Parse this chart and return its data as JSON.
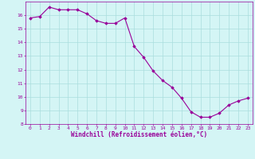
{
  "x": [
    0,
    1,
    2,
    3,
    4,
    5,
    6,
    7,
    8,
    9,
    10,
    11,
    12,
    13,
    14,
    15,
    16,
    17,
    18,
    19,
    20,
    21,
    22,
    23
  ],
  "y": [
    15.8,
    15.9,
    16.6,
    16.4,
    16.4,
    16.4,
    16.1,
    15.6,
    15.4,
    15.4,
    15.8,
    13.7,
    12.9,
    11.9,
    11.2,
    10.7,
    9.9,
    8.9,
    8.5,
    8.5,
    8.8,
    9.4,
    9.7,
    9.9
  ],
  "line_color": "#990099",
  "marker": "D",
  "markersize": 1.8,
  "linewidth": 0.8,
  "xlabel": "Windchill (Refroidissement éolien,°C)",
  "xlabel_color": "#990099",
  "xlabel_fontsize": 5.5,
  "bg_color": "#d4f5f5",
  "grid_color": "#aadddd",
  "tick_color": "#990099",
  "ylim": [
    8,
    17
  ],
  "xlim": [
    -0.5,
    23.5
  ],
  "yticks": [
    8,
    9,
    10,
    11,
    12,
    13,
    14,
    15,
    16
  ],
  "xticks": [
    0,
    1,
    2,
    3,
    4,
    5,
    6,
    7,
    8,
    9,
    10,
    11,
    12,
    13,
    14,
    15,
    16,
    17,
    18,
    19,
    20,
    21,
    22,
    23
  ],
  "tick_fontsize": 4.5,
  "spine_color": "#990099"
}
